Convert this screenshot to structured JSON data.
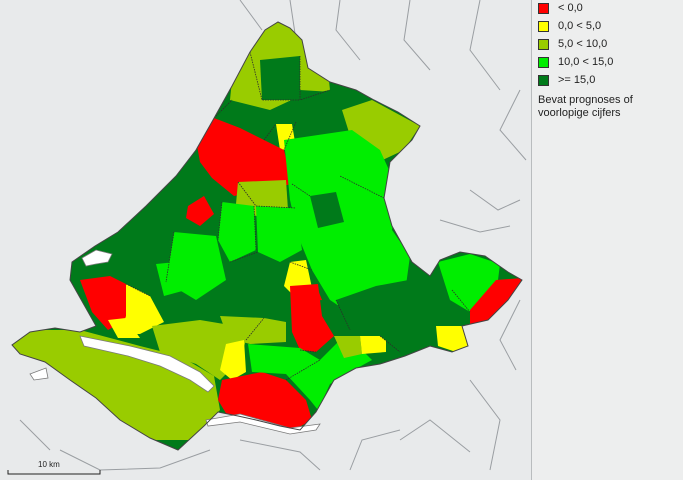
{
  "legend": {
    "items": [
      {
        "label": "< 0,0",
        "color": "#ff0000"
      },
      {
        "label": "0,0 < 5,0",
        "color": "#ffff00"
      },
      {
        "label": "5,0 < 10,0",
        "color": "#99cc00"
      },
      {
        "label": "10,0 < 15,0",
        "color": "#00ee00"
      },
      {
        "label": ">= 15,0",
        "color": "#007a1a"
      }
    ],
    "note": "Bevat prognoses of voorlopige cijfers"
  },
  "scale": {
    "label": "10 km"
  },
  "colors": {
    "background": "#e8eaeb",
    "water": "#ffffff",
    "border": "#3a3a3a",
    "class_negative": "#ff0000",
    "class_0_5": "#ffff00",
    "class_5_10": "#99cc00",
    "class_10_15": "#00ee00",
    "class_15_plus": "#007a1a"
  }
}
